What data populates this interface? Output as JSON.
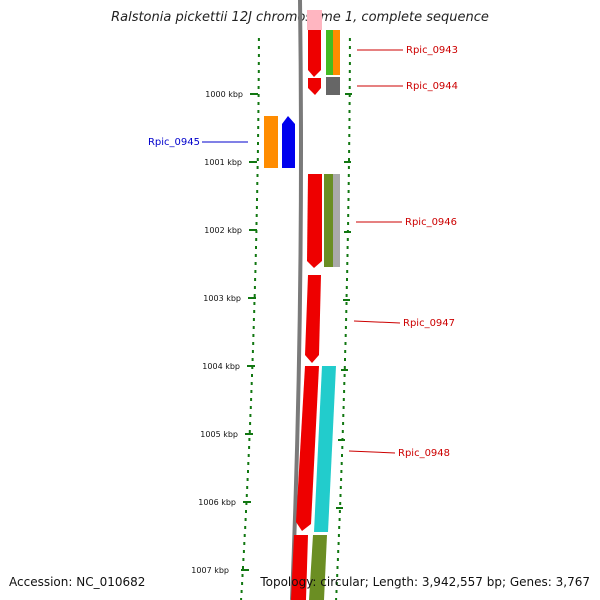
{
  "header": {
    "title": "Ralstonia pickettii 12J chromosome 1, complete sequence"
  },
  "footer": {
    "accession_label": "Accession:",
    "accession_value": "NC_010682",
    "topology_label": "Topology:",
    "topology_value": "circular",
    "length_label": "Length:",
    "length_value": "3,942,557 bp",
    "genes_label": "Genes:",
    "genes_value": "3,767"
  },
  "ruler": {
    "ticks": [
      "1000 kbp",
      "1001 kbp",
      "1002 kbp",
      "1003 kbp",
      "1004 kbp",
      "1005 kbp",
      "1006 kbp",
      "1007 kbp"
    ]
  },
  "genes": [
    {
      "label": "Rpic_0943",
      "strand": "forward",
      "label_color": "#cc0000"
    },
    {
      "label": "Rpic_0944",
      "strand": "forward",
      "label_color": "#cc0000"
    },
    {
      "label": "Rpic_0945",
      "strand": "reverse",
      "label_color": "#0000cc"
    },
    {
      "label": "Rpic_0946",
      "strand": "forward",
      "label_color": "#cc0000"
    },
    {
      "label": "Rpic_0947",
      "strand": "forward",
      "label_color": "#cc0000"
    },
    {
      "label": "Rpic_0948",
      "strand": "forward",
      "label_color": "#cc0000"
    }
  ],
  "colors": {
    "backbone": "#7a7a7a",
    "forward_cds": "#ee0000",
    "reverse_cds": "#0000ee",
    "orange_feature": "#ff8c00",
    "green_feature": "#44bb22",
    "olive_feature": "#6b8e23",
    "cyan_feature": "#22cccc",
    "gray_feature": "#666666",
    "tick_green": "#117711"
  }
}
